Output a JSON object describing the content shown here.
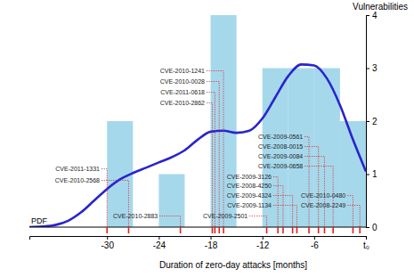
{
  "chart_data": {
    "type": "histogram",
    "x_label": "Duration of zero-day attacks [months]",
    "y_label": "Vulnerabilities",
    "bins": [
      -30,
      -27,
      -24,
      -21,
      -18,
      -15,
      -12,
      -9,
      -6,
      -3,
      0
    ],
    "counts": [
      2,
      0,
      1,
      0,
      4,
      0,
      3,
      3,
      3,
      2
    ],
    "color": "#a6d8ec",
    "xlim": [
      -39,
      0
    ],
    "xticks": [
      -30,
      -24,
      -18,
      -12,
      -6,
      {
        "value": 0,
        "label": "t₀"
      }
    ],
    "ylim": [
      0,
      4
    ],
    "yticks": [
      0,
      1,
      2,
      3,
      4
    ],
    "series": [
      {
        "name": "PDF",
        "type": "line",
        "color": "#2a24cc",
        "x": [
          -39,
          -37.5,
          -36,
          -34.5,
          -33,
          -31.5,
          -30,
          -28.5,
          -27,
          -25.5,
          -24,
          -22.5,
          -21,
          -19.5,
          -18,
          -16.5,
          -15,
          -13.5,
          -12,
          -10.5,
          -9,
          -7.5,
          -6,
          -4.5,
          -3,
          -1.5,
          0
        ],
        "values": [
          0.0,
          0.01,
          0.04,
          0.12,
          0.28,
          0.5,
          0.72,
          0.9,
          1.02,
          1.12,
          1.22,
          1.32,
          1.45,
          1.65,
          1.8,
          1.82,
          1.78,
          1.82,
          2.05,
          2.45,
          2.85,
          3.07,
          3.05,
          2.8,
          2.3,
          1.65,
          1.05
        ]
      }
    ],
    "events": [
      {
        "label": "CVE-2011-1331",
        "x": -30
      },
      {
        "label": "CVE-2010-2568",
        "x": -27.5
      },
      {
        "label": "CVE-2010-2883",
        "x": -21.5
      },
      {
        "label": "CVE-2010-1241",
        "x": -16.5
      },
      {
        "label": "CVE-2010-0028",
        "x": -17
      },
      {
        "label": "CVE-2011-0618",
        "x": -17.5
      },
      {
        "label": "CVE-2010-2862",
        "x": -17.8
      },
      {
        "label": "CVE-2009-0561",
        "x": -6.6
      },
      {
        "label": "CVE-2008-0015",
        "x": -5.5
      },
      {
        "label": "CVE-2009-0084",
        "x": -4.8
      },
      {
        "label": "CVE-2009-0658",
        "x": -3.8
      },
      {
        "label": "CVE-2009-3126",
        "x": -10.2
      },
      {
        "label": "CVE-2008-4250",
        "x": -9.6
      },
      {
        "label": "CVE-2009-4324",
        "x": -8.5
      },
      {
        "label": "CVE-2009-1134",
        "x": -8
      },
      {
        "label": "CVE-2009-2501",
        "x": -11.5
      },
      {
        "label": "CVE-2010-0480",
        "x": -1.5
      },
      {
        "label": "CVE-2008-2249",
        "x": -0.7
      }
    ]
  }
}
